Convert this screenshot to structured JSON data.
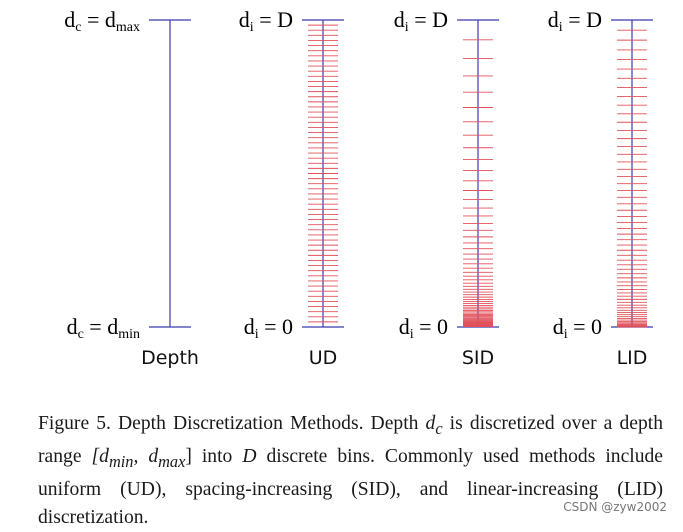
{
  "figure": {
    "columns": [
      {
        "id": "depth",
        "label": "Depth",
        "top_var": "d",
        "top_sub": "c",
        "top_rhs": "d",
        "top_rhs_sub": "max",
        "bottom_var": "d",
        "bottom_sub": "c",
        "bottom_rhs": "d",
        "bottom_rhs_sub": "min",
        "method": "none",
        "bins": 0
      },
      {
        "id": "ud",
        "label": "UD",
        "top_var": "d",
        "top_sub": "i",
        "top_rhs": "D",
        "top_rhs_sub": "",
        "bottom_var": "d",
        "bottom_sub": "i",
        "bottom_rhs": "0",
        "bottom_rhs_sub": "",
        "method": "uniform",
        "bins": 60
      },
      {
        "id": "sid",
        "label": "SID",
        "top_var": "d",
        "top_sub": "i",
        "top_rhs": "D",
        "top_rhs_sub": "",
        "bottom_var": "d",
        "bottom_sub": "i",
        "bottom_rhs": "0",
        "bottom_rhs_sub": "",
        "method": "spacing-increasing",
        "bins": 60
      },
      {
        "id": "lid",
        "label": "LID",
        "top_var": "d",
        "top_sub": "i",
        "top_rhs": "D",
        "top_rhs_sub": "",
        "bottom_var": "d",
        "bottom_sub": "i",
        "bottom_rhs": "0",
        "bottom_rhs_sub": "",
        "method": "linear-increasing",
        "bins": 60
      }
    ],
    "colors": {
      "axis": "#3b3bb0",
      "tick": "#e0505a"
    }
  },
  "caption": {
    "prefix": "Figure 5. Depth Discretization Methods.  Depth ",
    "dc_var": "d",
    "dc_sub": "c",
    "part2": " is discretized over a depth range ",
    "range": "[d",
    "range_min_sub": "min",
    "range_mid": ", d",
    "range_max_sub": "max",
    "range_close": "]",
    "part3": " into ",
    "D": "D",
    "part4": " discrete bins. Commonly used methods include uniform (UD), spacing-increasing (SID), and linear-increasing (LID) discretization."
  },
  "watermark": "CSDN @zyw2002"
}
